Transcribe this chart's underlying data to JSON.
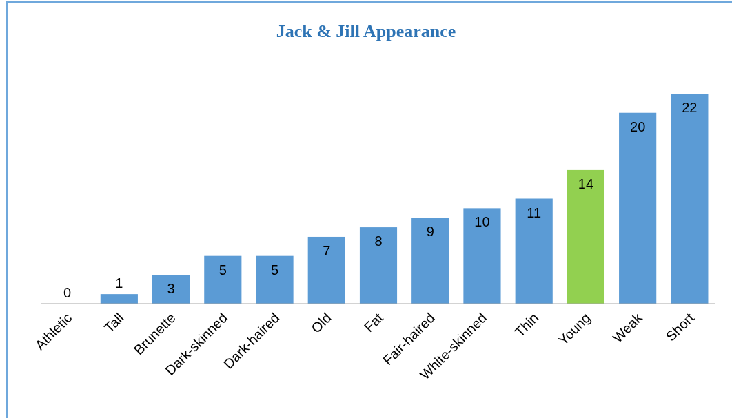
{
  "chart_data": {
    "type": "bar",
    "title": "Jack & Jill Appearance",
    "categories": [
      "Athletic",
      "Tall",
      "Brunette",
      "Dark-skinned",
      "Dark-haired",
      "Old",
      "Fat",
      "Fair-haired",
      "White-skinned",
      "Thin",
      "Young",
      "Weak",
      "Short"
    ],
    "values": [
      0,
      1,
      3,
      5,
      5,
      7,
      8,
      9,
      10,
      11,
      14,
      20,
      22
    ],
    "colors": [
      "#5b9bd5",
      "#5b9bd5",
      "#5b9bd5",
      "#5b9bd5",
      "#5b9bd5",
      "#5b9bd5",
      "#5b9bd5",
      "#5b9bd5",
      "#5b9bd5",
      "#5b9bd5",
      "#92d050",
      "#5b9bd5",
      "#5b9bd5"
    ],
    "data_labels": true
  }
}
